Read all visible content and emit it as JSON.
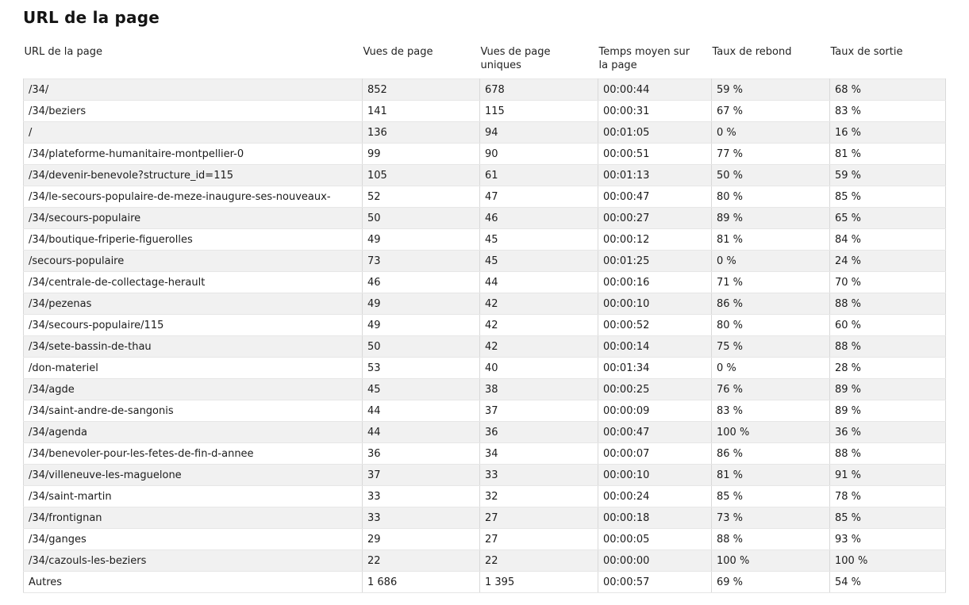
{
  "page": {
    "title": "URL de la page"
  },
  "colors": {
    "alt_row_background": "#f1f1f1",
    "table_border": "#d9d9d9",
    "text": "#1c1c1c"
  },
  "table": {
    "columns": [
      {
        "label": "URL de la page"
      },
      {
        "label": "Vues de page"
      },
      {
        "label": "Vues de page\nuniques"
      },
      {
        "label": "Temps moyen sur\nla page"
      },
      {
        "label": "Taux de rebond"
      },
      {
        "label": "Taux de sortie"
      }
    ],
    "rows": [
      {
        "url": "/34/",
        "views": "852",
        "unique_views": "678",
        "avg_time": "00:00:44",
        "bounce_rate": "59 %",
        "exit_rate": "68 %"
      },
      {
        "url": "/34/beziers",
        "views": "141",
        "unique_views": "115",
        "avg_time": "00:00:31",
        "bounce_rate": "67 %",
        "exit_rate": "83 %"
      },
      {
        "url": "/",
        "views": "136",
        "unique_views": "94",
        "avg_time": "00:01:05",
        "bounce_rate": "0 %",
        "exit_rate": "16 %"
      },
      {
        "url": "/34/plateforme-humanitaire-montpellier-0",
        "views": "99",
        "unique_views": "90",
        "avg_time": "00:00:51",
        "bounce_rate": "77 %",
        "exit_rate": "81 %"
      },
      {
        "url": "/34/devenir-benevole?structure_id=115",
        "views": "105",
        "unique_views": "61",
        "avg_time": "00:01:13",
        "bounce_rate": "50 %",
        "exit_rate": "59 %"
      },
      {
        "url": "/34/le-secours-populaire-de-meze-inaugure-ses-nouveaux-",
        "views": "52",
        "unique_views": "47",
        "avg_time": "00:00:47",
        "bounce_rate": "80 %",
        "exit_rate": "85 %"
      },
      {
        "url": "/34/secours-populaire",
        "views": "50",
        "unique_views": "46",
        "avg_time": "00:00:27",
        "bounce_rate": "89 %",
        "exit_rate": "65 %"
      },
      {
        "url": "/34/boutique-friperie-figuerolles",
        "views": "49",
        "unique_views": "45",
        "avg_time": "00:00:12",
        "bounce_rate": "81 %",
        "exit_rate": "84 %"
      },
      {
        "url": "/secours-populaire",
        "views": "73",
        "unique_views": "45",
        "avg_time": "00:01:25",
        "bounce_rate": "0 %",
        "exit_rate": "24 %"
      },
      {
        "url": "/34/centrale-de-collectage-herault",
        "views": "46",
        "unique_views": "44",
        "avg_time": "00:00:16",
        "bounce_rate": "71 %",
        "exit_rate": "70 %"
      },
      {
        "url": "/34/pezenas",
        "views": "49",
        "unique_views": "42",
        "avg_time": "00:00:10",
        "bounce_rate": "86 %",
        "exit_rate": "88 %"
      },
      {
        "url": "/34/secours-populaire/115",
        "views": "49",
        "unique_views": "42",
        "avg_time": "00:00:52",
        "bounce_rate": "80 %",
        "exit_rate": "60 %"
      },
      {
        "url": "/34/sete-bassin-de-thau",
        "views": "50",
        "unique_views": "42",
        "avg_time": "00:00:14",
        "bounce_rate": "75 %",
        "exit_rate": "88 %"
      },
      {
        "url": "/don-materiel",
        "views": "53",
        "unique_views": "40",
        "avg_time": "00:01:34",
        "bounce_rate": "0 %",
        "exit_rate": "28 %"
      },
      {
        "url": "/34/agde",
        "views": "45",
        "unique_views": "38",
        "avg_time": "00:00:25",
        "bounce_rate": "76 %",
        "exit_rate": "89 %"
      },
      {
        "url": "/34/saint-andre-de-sangonis",
        "views": "44",
        "unique_views": "37",
        "avg_time": "00:00:09",
        "bounce_rate": "83 %",
        "exit_rate": "89 %"
      },
      {
        "url": "/34/agenda",
        "views": "44",
        "unique_views": "36",
        "avg_time": "00:00:47",
        "bounce_rate": "100 %",
        "exit_rate": "36 %"
      },
      {
        "url": "/34/benevoler-pour-les-fetes-de-fin-d-annee",
        "views": "36",
        "unique_views": "34",
        "avg_time": "00:00:07",
        "bounce_rate": "86 %",
        "exit_rate": "88 %"
      },
      {
        "url": "/34/villeneuve-les-maguelone",
        "views": "37",
        "unique_views": "33",
        "avg_time": "00:00:10",
        "bounce_rate": "81 %",
        "exit_rate": "91 %"
      },
      {
        "url": "/34/saint-martin",
        "views": "33",
        "unique_views": "32",
        "avg_time": "00:00:24",
        "bounce_rate": "85 %",
        "exit_rate": "78 %"
      },
      {
        "url": "/34/frontignan",
        "views": "33",
        "unique_views": "27",
        "avg_time": "00:00:18",
        "bounce_rate": "73 %",
        "exit_rate": "85 %"
      },
      {
        "url": "/34/ganges",
        "views": "29",
        "unique_views": "27",
        "avg_time": "00:00:05",
        "bounce_rate": "88 %",
        "exit_rate": "93 %"
      },
      {
        "url": "/34/cazouls-les-beziers",
        "views": "22",
        "unique_views": "22",
        "avg_time": "00:00:00",
        "bounce_rate": "100 %",
        "exit_rate": "100 %"
      },
      {
        "url": "Autres",
        "views": "1 686",
        "unique_views": "1 395",
        "avg_time": "00:00:57",
        "bounce_rate": "69 %",
        "exit_rate": "54 %"
      }
    ]
  }
}
